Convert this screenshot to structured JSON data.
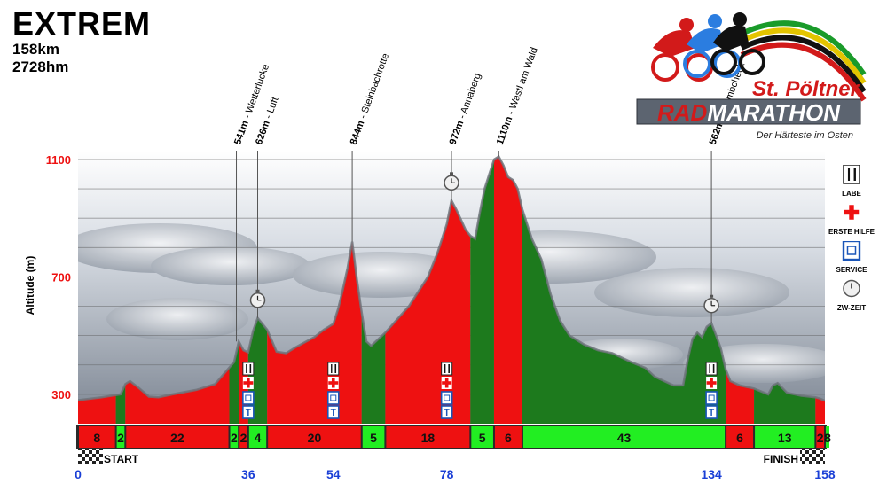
{
  "title": "EXTREM",
  "distance": "158km",
  "climb": "2728hm",
  "logo": {
    "line1": "St. Pöltner",
    "line2a": "RAD",
    "line2b": "MARATHON",
    "tagline": "Der Härteste im Osten",
    "stripe_colors": [
      "#1a9b2a",
      "#e3c400",
      "#111111",
      "#d21a1a"
    ]
  },
  "legend": [
    {
      "icon": "fork-knife-icon",
      "label": "LABE"
    },
    {
      "icon": "red-cross-icon",
      "label": "ERSTE HILFE"
    },
    {
      "icon": "wc-icon",
      "label": "SERVICE"
    },
    {
      "icon": "stopwatch-icon",
      "label": "ZW-ZEIT"
    }
  ],
  "colors": {
    "climb": "#ee1111",
    "descent": "#1d7a1d",
    "descent_bar": "#22ee22"
  },
  "chart_data": {
    "type": "area",
    "ylabel": "Altitude (m)",
    "yticks": [
      300,
      700,
      1100
    ],
    "ylim": [
      200,
      1130
    ],
    "xlim": [
      0,
      158
    ],
    "profile": [
      [
        0,
        280
      ],
      [
        5,
        290
      ],
      [
        9,
        300
      ],
      [
        10,
        335
      ],
      [
        11,
        345
      ],
      [
        13,
        320
      ],
      [
        15,
        292
      ],
      [
        17,
        290
      ],
      [
        20,
        300
      ],
      [
        25,
        315
      ],
      [
        29,
        335
      ],
      [
        33,
        410
      ],
      [
        34,
        480
      ],
      [
        35,
        450
      ],
      [
        36,
        443
      ],
      [
        37,
        515
      ],
      [
        38,
        560
      ],
      [
        40,
        520
      ],
      [
        42,
        445
      ],
      [
        44,
        440
      ],
      [
        46,
        460
      ],
      [
        50,
        495
      ],
      [
        52,
        520
      ],
      [
        54,
        540
      ],
      [
        55,
        590
      ],
      [
        56,
        655
      ],
      [
        57,
        730
      ],
      [
        58,
        820
      ],
      [
        59,
        690
      ],
      [
        60,
        580
      ],
      [
        61,
        480
      ],
      [
        62,
        465
      ],
      [
        65,
        510
      ],
      [
        70,
        600
      ],
      [
        74,
        700
      ],
      [
        76,
        780
      ],
      [
        78,
        880
      ],
      [
        79,
        960
      ],
      [
        80,
        930
      ],
      [
        82,
        860
      ],
      [
        83,
        840
      ],
      [
        84,
        830
      ],
      [
        85,
        920
      ],
      [
        86,
        1000
      ],
      [
        87,
        1050
      ],
      [
        88,
        1100
      ],
      [
        89,
        1110
      ],
      [
        90,
        1080
      ],
      [
        91,
        1040
      ],
      [
        92,
        1030
      ],
      [
        93,
        1000
      ],
      [
        94,
        930
      ],
      [
        96,
        830
      ],
      [
        98,
        760
      ],
      [
        100,
        640
      ],
      [
        102,
        550
      ],
      [
        104,
        500
      ],
      [
        107,
        470
      ],
      [
        110,
        450
      ],
      [
        113,
        440
      ],
      [
        117,
        410
      ],
      [
        120,
        390
      ],
      [
        122,
        360
      ],
      [
        124,
        345
      ],
      [
        126,
        330
      ],
      [
        128,
        330
      ],
      [
        129,
        420
      ],
      [
        130,
        490
      ],
      [
        131,
        510
      ],
      [
        132,
        495
      ],
      [
        133,
        530
      ],
      [
        134,
        542
      ],
      [
        135,
        500
      ],
      [
        136,
        455
      ],
      [
        137,
        385
      ],
      [
        138,
        345
      ],
      [
        140,
        330
      ],
      [
        143,
        320
      ],
      [
        146,
        300
      ],
      [
        147,
        330
      ],
      [
        148,
        338
      ],
      [
        150,
        305
      ],
      [
        153,
        295
      ],
      [
        156,
        290
      ],
      [
        157,
        285
      ],
      [
        158,
        278
      ]
    ],
    "segments": [
      {
        "from": 0,
        "to": 8,
        "label": "8",
        "type": "climb"
      },
      {
        "from": 8,
        "to": 10,
        "label": "2",
        "type": "descent"
      },
      {
        "from": 10,
        "to": 32,
        "label": "22",
        "type": "climb"
      },
      {
        "from": 32,
        "to": 34,
        "label": "2",
        "type": "descent"
      },
      {
        "from": 34,
        "to": 36,
        "label": "2",
        "type": "climb"
      },
      {
        "from": 36,
        "to": 40,
        "label": "4",
        "type": "descent"
      },
      {
        "from": 40,
        "to": 60,
        "label": "20",
        "type": "climb"
      },
      {
        "from": 60,
        "to": 65,
        "label": "5",
        "type": "descent"
      },
      {
        "from": 65,
        "to": 83,
        "label": "18",
        "type": "climb"
      },
      {
        "from": 83,
        "to": 88,
        "label": "5",
        "type": "descent"
      },
      {
        "from": 88,
        "to": 94,
        "label": "6",
        "type": "climb"
      },
      {
        "from": 94,
        "to": 137,
        "label": "43",
        "type": "descent"
      },
      {
        "from": 137,
        "to": 143,
        "label": "6",
        "type": "climb"
      },
      {
        "from": 143,
        "to": 156,
        "label": "13",
        "type": "descent"
      },
      {
        "from": 156,
        "to": 158,
        "label": "2",
        "type": "climb"
      },
      {
        "from": 158,
        "to": 166,
        "label": "8",
        "type": "descent"
      }
    ],
    "peaks": [
      {
        "x": 33.5,
        "alt": 480,
        "label": "541m - Wetterlucke"
      },
      {
        "x": 38,
        "alt": 560,
        "label": "626m - Luft"
      },
      {
        "x": 58,
        "alt": 820,
        "label": "844m - Steinbachrotte"
      },
      {
        "x": 79,
        "alt": 960,
        "label": "972m - Annaberg"
      },
      {
        "x": 89,
        "alt": 1110,
        "label": "1110m - Wastl am Wald"
      },
      {
        "x": 134,
        "alt": 542,
        "label": "562m - Plambcheck"
      }
    ],
    "timing_points": [
      38,
      79,
      134
    ],
    "stations": [
      36,
      54,
      78,
      134
    ],
    "xticks": [
      0,
      36,
      54,
      78,
      134,
      158
    ],
    "start_label": "START",
    "finish_label": "FINISH"
  }
}
